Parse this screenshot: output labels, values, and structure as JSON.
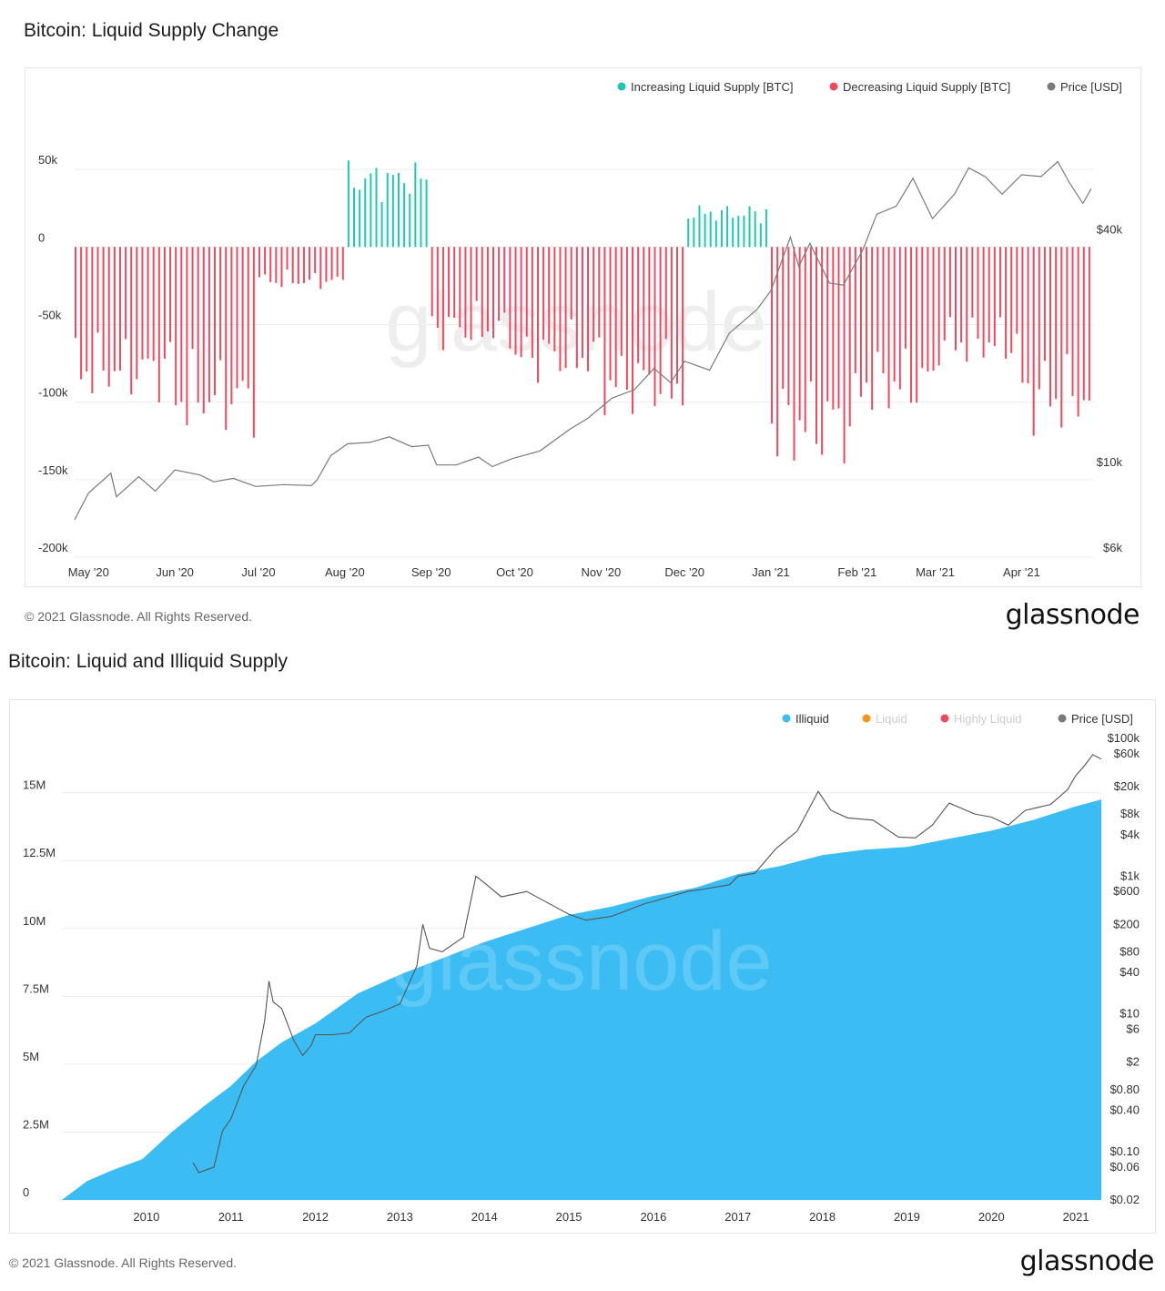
{
  "colors": {
    "increasing": "#1dc9b0",
    "decreasing": "#f0485e",
    "price": "#7a7a7a",
    "illiquid": "#3bbdf3",
    "liquid": "#f7931a",
    "highly_liquid": "#f0485e",
    "grid": "#ececec",
    "axis_text": "#333333"
  },
  "chart1": {
    "title": "Bitcoin: Liquid Supply Change",
    "footer": "© 2021 Glassnode. All Rights Reserved.",
    "brand": "glassnode",
    "watermark": "glassnode",
    "legend": [
      "Increasing Liquid Supply [BTC]",
      "Decreasing Liquid Supply [BTC]",
      "Price [USD]"
    ]
  },
  "chart2": {
    "title": "Bitcoin: Liquid and Illiquid Supply",
    "footer": "© 2021 Glassnode. All Rights Reserved.",
    "brand": "glassnode",
    "watermark": "glassnode",
    "legend": [
      "Illiquid",
      "Liquid",
      "Highly Liquid",
      "Price [USD]"
    ]
  },
  "chart_data": [
    {
      "type": "bar",
      "title": "Bitcoin: Liquid Supply Change",
      "legend_position": "top-right",
      "grid": true,
      "y_left": {
        "ticks": [
          50000,
          0,
          -50000,
          -100000,
          -150000,
          -200000
        ],
        "tick_labels": [
          "50k",
          "0",
          "-50k",
          "-100k",
          "-150k",
          "-200k"
        ],
        "range": [
          -200000,
          80000
        ]
      },
      "y_right": {
        "scale": "log",
        "ticks": [
          40000,
          10000,
          6000
        ],
        "tick_labels": [
          "$40k",
          "$10k",
          "$6k"
        ],
        "range": [
          6000,
          80000
        ]
      },
      "x": {
        "tick_labels": [
          "May '20",
          "Jun '20",
          "Jul '20",
          "Aug '20",
          "Sep '20",
          "Oct '20",
          "Nov '20",
          "Dec '20",
          "Jan '21",
          "Feb '21",
          "Mar '21",
          "Apr '21"
        ],
        "start": "2020-04-26",
        "end": "2021-04-27"
      },
      "net_change_monthly": [
        {
          "period": "May '20",
          "value": -90000
        },
        {
          "period": "Jun '20",
          "value": -110000
        },
        {
          "period": "Jul '20",
          "value": -25000
        },
        {
          "period": "Aug '20",
          "value": 50000
        },
        {
          "period": "Sep '20",
          "value": -60000
        },
        {
          "period": "Oct '20",
          "value": -80000
        },
        {
          "period": "Nov '20",
          "value": -100000
        },
        {
          "period": "Dec '20",
          "value": 25000
        },
        {
          "period": "Jan '21",
          "value": -130000
        },
        {
          "period": "Feb '21",
          "value": -100000
        },
        {
          "period": "Mar '21",
          "value": -70000
        },
        {
          "period": "Apr '21",
          "value": -110000
        }
      ],
      "series": [
        {
          "name": "Increasing Liquid Supply [BTC]",
          "color": "#1dc9b0",
          "type": "bar"
        },
        {
          "name": "Decreasing Liquid Supply [BTC]",
          "color": "#f0485e",
          "type": "bar"
        },
        {
          "name": "Price [USD]",
          "color": "#7a7a7a",
          "type": "line",
          "axis": "right",
          "points": [
            [
              "2020-04-26",
              7500
            ],
            [
              "2020-05-01",
              8800
            ],
            [
              "2020-05-09",
              9900
            ],
            [
              "2020-05-11",
              8600
            ],
            [
              "2020-05-19",
              9700
            ],
            [
              "2020-05-25",
              8900
            ],
            [
              "2020-06-01",
              10100
            ],
            [
              "2020-06-10",
              9800
            ],
            [
              "2020-06-15",
              9400
            ],
            [
              "2020-06-22",
              9600
            ],
            [
              "2020-06-30",
              9150
            ],
            [
              "2020-07-10",
              9250
            ],
            [
              "2020-07-20",
              9200
            ],
            [
              "2020-07-22",
              9500
            ],
            [
              "2020-07-27",
              11000
            ],
            [
              "2020-08-02",
              11800
            ],
            [
              "2020-08-10",
              11900
            ],
            [
              "2020-08-17",
              12300
            ],
            [
              "2020-08-25",
              11600
            ],
            [
              "2020-08-31",
              11700
            ],
            [
              "2020-09-03",
              10400
            ],
            [
              "2020-09-10",
              10400
            ],
            [
              "2020-09-18",
              10900
            ],
            [
              "2020-09-23",
              10300
            ],
            [
              "2020-09-30",
              10800
            ],
            [
              "2020-10-10",
              11300
            ],
            [
              "2020-10-21",
              12900
            ],
            [
              "2020-10-27",
              13700
            ],
            [
              "2020-11-05",
              15500
            ],
            [
              "2020-11-13",
              16300
            ],
            [
              "2020-11-20",
              18500
            ],
            [
              "2020-11-26",
              17000
            ],
            [
              "2020-12-01",
              19300
            ],
            [
              "2020-12-10",
              18300
            ],
            [
              "2020-12-17",
              22800
            ],
            [
              "2020-12-27",
              26300
            ],
            [
              "2021-01-01",
              29400
            ],
            [
              "2021-01-08",
              40500
            ],
            [
              "2021-01-11",
              34000
            ],
            [
              "2021-01-15",
              39000
            ],
            [
              "2021-01-22",
              30800
            ],
            [
              "2021-01-27",
              30400
            ],
            [
              "2021-02-03",
              37500
            ],
            [
              "2021-02-08",
              46400
            ],
            [
              "2021-02-15",
              48700
            ],
            [
              "2021-02-21",
              57500
            ],
            [
              "2021-02-28",
              45200
            ],
            [
              "2021-03-08",
              52400
            ],
            [
              "2021-03-13",
              61200
            ],
            [
              "2021-03-19",
              58000
            ],
            [
              "2021-03-25",
              52300
            ],
            [
              "2021-04-01",
              58700
            ],
            [
              "2021-04-08",
              58100
            ],
            [
              "2021-04-14",
              63500
            ],
            [
              "2021-04-18",
              56200
            ],
            [
              "2021-04-23",
              49500
            ],
            [
              "2021-04-26",
              54000
            ]
          ]
        }
      ]
    },
    {
      "type": "area",
      "title": "Bitcoin: Liquid and Illiquid Supply",
      "legend_position": "top-right",
      "grid": true,
      "y_left": {
        "ticks": [
          0,
          2500000,
          5000000,
          7500000,
          10000000,
          12500000,
          15000000
        ],
        "tick_labels": [
          "0",
          "2.5M",
          "5M",
          "7.5M",
          "10M",
          "12.5M",
          "15M"
        ],
        "range": [
          0,
          17000000
        ]
      },
      "y_right": {
        "scale": "log",
        "tick_labels": [
          "$100k",
          "$60k",
          "$20k",
          "$8k",
          "$4k",
          "$1k",
          "$600",
          "$200",
          "$80",
          "$40",
          "$10",
          "$6",
          "$2",
          "$0.80",
          "$0.40",
          "$0.10",
          "$0.06",
          "$0.02"
        ],
        "ticks": [
          100000,
          60000,
          20000,
          8000,
          4000,
          1000,
          600,
          200,
          80,
          40,
          10,
          6,
          2,
          0.8,
          0.4,
          0.1,
          0.06,
          0.02
        ],
        "range": [
          0.02,
          100000
        ]
      },
      "x": {
        "tick_labels": [
          "2010",
          "2011",
          "2012",
          "2013",
          "2014",
          "2015",
          "2016",
          "2017",
          "2018",
          "2019",
          "2020",
          "2021"
        ],
        "start": 2009.0,
        "end": 2021.3
      },
      "series": [
        {
          "name": "Illiquid",
          "color": "#3bbdf3",
          "type": "area",
          "points": [
            [
              2009.0,
              0
            ],
            [
              2009.3,
              700000
            ],
            [
              2009.6,
              1100000
            ],
            [
              2009.95,
              1500000
            ],
            [
              2010.3,
              2500000
            ],
            [
              2010.7,
              3500000
            ],
            [
              2011.0,
              4200000
            ],
            [
              2011.3,
              5100000
            ],
            [
              2011.6,
              5800000
            ],
            [
              2012.0,
              6500000
            ],
            [
              2012.5,
              7600000
            ],
            [
              2013.0,
              8300000
            ],
            [
              2013.5,
              8900000
            ],
            [
              2014.0,
              9500000
            ],
            [
              2014.5,
              10000000
            ],
            [
              2015.0,
              10500000
            ],
            [
              2015.5,
              10800000
            ],
            [
              2016.0,
              11200000
            ],
            [
              2016.5,
              11500000
            ],
            [
              2017.0,
              12000000
            ],
            [
              2017.5,
              12300000
            ],
            [
              2018.0,
              12700000
            ],
            [
              2018.5,
              12900000
            ],
            [
              2019.0,
              13000000
            ],
            [
              2019.5,
              13300000
            ],
            [
              2020.0,
              13600000
            ],
            [
              2020.5,
              14000000
            ],
            [
              2021.0,
              14500000
            ],
            [
              2021.3,
              14750000
            ]
          ]
        },
        {
          "name": "Liquid",
          "color": "#f7931a",
          "type": "area",
          "visible": false
        },
        {
          "name": "Highly Liquid",
          "color": "#f0485e",
          "type": "area",
          "visible": false
        },
        {
          "name": "Price [USD]",
          "color": "#555555",
          "type": "line",
          "axis": "right",
          "points": [
            [
              2010.55,
              0.07
            ],
            [
              2010.62,
              0.05
            ],
            [
              2010.8,
              0.06
            ],
            [
              2010.9,
              0.2
            ],
            [
              2011.0,
              0.3
            ],
            [
              2011.15,
              0.9
            ],
            [
              2011.3,
              1.8
            ],
            [
              2011.4,
              8
            ],
            [
              2011.45,
              30
            ],
            [
              2011.5,
              15
            ],
            [
              2011.6,
              12
            ],
            [
              2011.75,
              4
            ],
            [
              2011.85,
              2.5
            ],
            [
              2011.95,
              3.5
            ],
            [
              2012.0,
              5
            ],
            [
              2012.2,
              5
            ],
            [
              2012.4,
              5.3
            ],
            [
              2012.6,
              9
            ],
            [
              2012.8,
              11
            ],
            [
              2013.0,
              14
            ],
            [
              2013.2,
              50
            ],
            [
              2013.27,
              200
            ],
            [
              2013.35,
              90
            ],
            [
              2013.5,
              80
            ],
            [
              2013.75,
              130
            ],
            [
              2013.9,
              1000
            ],
            [
              2014.0,
              800
            ],
            [
              2014.2,
              500
            ],
            [
              2014.5,
              600
            ],
            [
              2014.8,
              380
            ],
            [
              2015.0,
              280
            ],
            [
              2015.2,
              230
            ],
            [
              2015.5,
              260
            ],
            [
              2015.9,
              400
            ],
            [
              2016.0,
              430
            ],
            [
              2016.4,
              600
            ],
            [
              2016.6,
              650
            ],
            [
              2016.9,
              750
            ],
            [
              2017.0,
              1000
            ],
            [
              2017.2,
              1100
            ],
            [
              2017.45,
              2500
            ],
            [
              2017.7,
              4500
            ],
            [
              2017.95,
              17000
            ],
            [
              2018.1,
              9000
            ],
            [
              2018.3,
              7000
            ],
            [
              2018.6,
              6500
            ],
            [
              2018.9,
              3700
            ],
            [
              2019.1,
              3600
            ],
            [
              2019.3,
              5500
            ],
            [
              2019.5,
              11500
            ],
            [
              2019.8,
              8000
            ],
            [
              2020.0,
              7200
            ],
            [
              2020.2,
              5500
            ],
            [
              2020.4,
              9000
            ],
            [
              2020.7,
              11000
            ],
            [
              2020.9,
              18000
            ],
            [
              2021.0,
              29000
            ],
            [
              2021.1,
              40000
            ],
            [
              2021.2,
              58000
            ],
            [
              2021.3,
              50000
            ]
          ]
        }
      ]
    }
  ]
}
